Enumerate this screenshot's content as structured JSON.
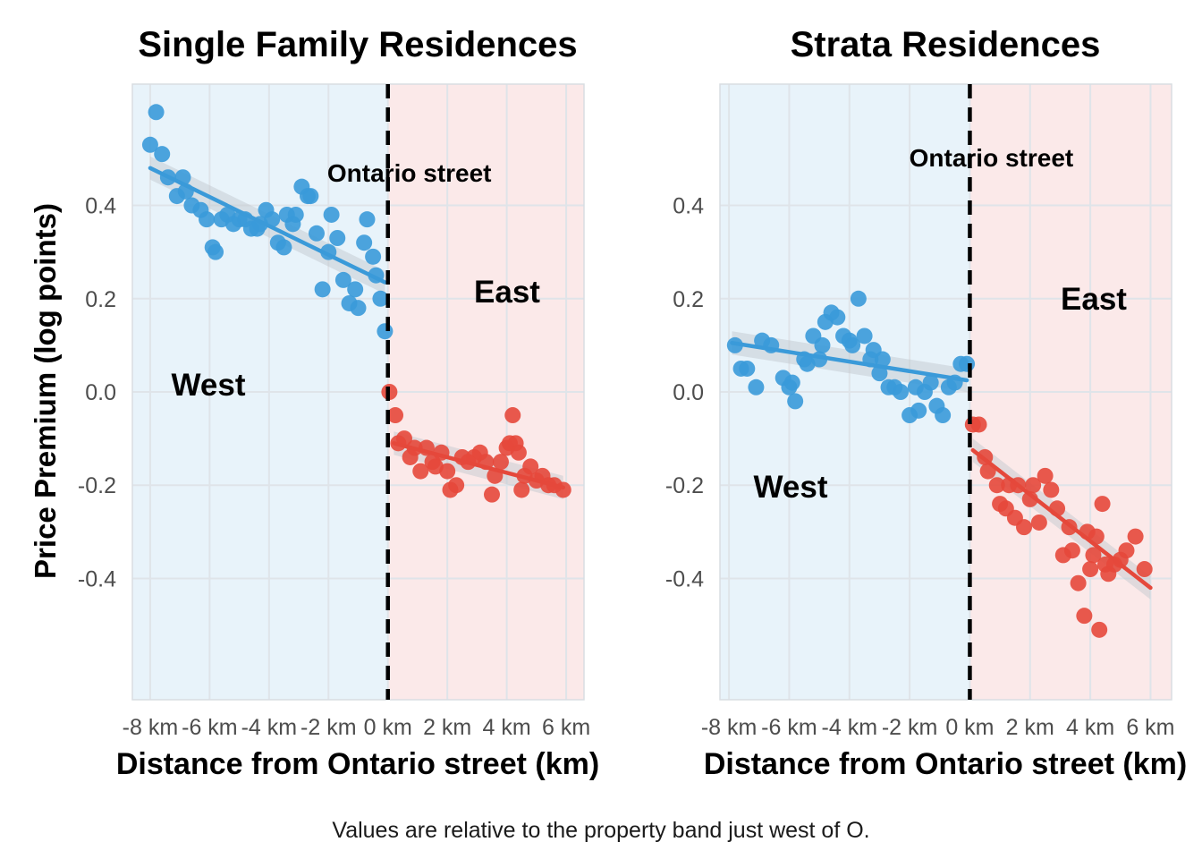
{
  "ylabel": "Price Premium (log points)",
  "caption": "Values are relative to the property band just west of O.",
  "colors": {
    "west_point": "#3a9ad9",
    "east_point": "#e5483b",
    "west_band": "#e8f3fa",
    "east_band": "#fbe9e9",
    "grid": "#dfe4e9",
    "divider": "#000000"
  },
  "chart_data": [
    {
      "type": "scatter",
      "title": "Single Family Residences",
      "xlabel": "Distance from Ontario street (km)",
      "ylabel": "Price Premium (log points)",
      "xlim": [
        -8.6,
        6.6
      ],
      "ylim": [
        -0.66,
        0.66
      ],
      "x_ticks": [
        -8,
        -6,
        -4,
        -2,
        0,
        2,
        4,
        6
      ],
      "x_tick_labels": [
        "-8 km",
        "-6 km",
        "-4 km",
        "-2 km",
        "0 km",
        "2 km",
        "4 km",
        "6 km"
      ],
      "y_ticks": [
        -0.4,
        -0.2,
        0.0,
        0.2,
        0.4
      ],
      "y_tick_labels": [
        "-0.4",
        "-0.2",
        "0.0",
        "0.2",
        "0.4"
      ],
      "grid": true,
      "divider_x": 0,
      "divider_label": "Ontario street",
      "region_labels": {
        "west": "West",
        "east": "East"
      },
      "series": [
        {
          "side": "west",
          "x": [
            -8.0,
            -7.8,
            -7.6,
            -7.4,
            -7.1,
            -6.9,
            -6.8,
            -6.6,
            -6.3,
            -6.1,
            -5.9,
            -5.8,
            -5.6,
            -5.4,
            -5.2,
            -5.0,
            -4.8,
            -4.6,
            -4.4,
            -4.3,
            -4.1,
            -3.9,
            -3.7,
            -3.5,
            -3.4,
            -3.2,
            -3.1,
            -2.9,
            -2.7,
            -2.6,
            -2.4,
            -2.2,
            -2.0,
            -1.9,
            -1.7,
            -1.5,
            -1.3,
            -1.1,
            -1.0,
            -0.8,
            -0.7,
            -0.5,
            -0.4,
            -0.25,
            -0.1
          ],
          "y": [
            0.53,
            0.6,
            0.51,
            0.46,
            0.42,
            0.46,
            0.43,
            0.4,
            0.39,
            0.37,
            0.31,
            0.3,
            0.37,
            0.38,
            0.36,
            0.37,
            0.37,
            0.35,
            0.35,
            0.36,
            0.39,
            0.37,
            0.32,
            0.31,
            0.38,
            0.36,
            0.38,
            0.44,
            0.42,
            0.42,
            0.34,
            0.22,
            0.3,
            0.38,
            0.33,
            0.24,
            0.19,
            0.22,
            0.18,
            0.32,
            0.37,
            0.29,
            0.25,
            0.2,
            0.13
          ],
          "fit": {
            "x0": -8.0,
            "y0": 0.48,
            "x1": -0.1,
            "y1": 0.235
          }
        },
        {
          "side": "east",
          "x": [
            0.05,
            0.25,
            0.35,
            0.55,
            0.75,
            0.9,
            1.1,
            1.3,
            1.5,
            1.6,
            1.8,
            2.0,
            2.1,
            2.3,
            2.5,
            2.7,
            2.9,
            3.1,
            3.3,
            3.5,
            3.6,
            3.8,
            4.0,
            4.1,
            4.2,
            4.3,
            4.4,
            4.5,
            4.6,
            4.8,
            5.0,
            5.2,
            5.4,
            5.6,
            5.9
          ],
          "y": [
            0.0,
            -0.05,
            -0.11,
            -0.1,
            -0.14,
            -0.12,
            -0.17,
            -0.12,
            -0.15,
            -0.16,
            -0.13,
            -0.17,
            -0.21,
            -0.2,
            -0.14,
            -0.15,
            -0.14,
            -0.13,
            -0.15,
            -0.22,
            -0.18,
            -0.15,
            -0.12,
            -0.11,
            -0.05,
            -0.11,
            -0.13,
            -0.21,
            -0.18,
            -0.16,
            -0.19,
            -0.18,
            -0.2,
            -0.2,
            -0.21
          ],
          "fit": {
            "x0": 0.2,
            "y0": -0.11,
            "x1": 5.9,
            "y1": -0.205
          }
        }
      ]
    },
    {
      "type": "scatter",
      "title": "Strata Residences",
      "xlabel": "Distance from Ontario street (km)",
      "ylabel": "",
      "xlim": [
        -8.3,
        6.7
      ],
      "ylim": [
        -0.66,
        0.66
      ],
      "x_ticks": [
        -8,
        -6,
        -4,
        -2,
        0,
        2,
        4,
        6
      ],
      "x_tick_labels": [
        "-8 km",
        "-6 km",
        "-4 km",
        "-2 km",
        "0 km",
        "2 km",
        "4 km",
        "6 km"
      ],
      "y_ticks": [
        -0.4,
        -0.2,
        0.0,
        0.2,
        0.4
      ],
      "y_tick_labels": [
        "-0.4",
        "-0.2",
        "0.0",
        "0.2",
        "0.4"
      ],
      "grid": true,
      "divider_x": 0,
      "divider_label": "Ontario street",
      "region_labels": {
        "west": "West",
        "east": "East"
      },
      "series": [
        {
          "side": "west",
          "x": [
            -7.8,
            -7.6,
            -7.4,
            -7.1,
            -6.9,
            -6.6,
            -6.2,
            -6.0,
            -5.9,
            -5.8,
            -5.5,
            -5.4,
            -5.2,
            -5.0,
            -4.9,
            -4.8,
            -4.6,
            -4.4,
            -4.2,
            -4.0,
            -3.9,
            -3.7,
            -3.5,
            -3.3,
            -3.2,
            -3.0,
            -2.9,
            -2.7,
            -2.5,
            -2.3,
            -2.0,
            -1.8,
            -1.7,
            -1.5,
            -1.3,
            -1.1,
            -0.9,
            -0.7,
            -0.5,
            -0.3,
            -0.1
          ],
          "y": [
            0.1,
            0.05,
            0.05,
            0.01,
            0.11,
            0.1,
            0.03,
            0.01,
            0.02,
            -0.02,
            0.07,
            0.06,
            0.12,
            0.07,
            0.1,
            0.15,
            0.17,
            0.16,
            0.12,
            0.11,
            0.1,
            0.2,
            0.12,
            0.07,
            0.09,
            0.04,
            0.07,
            0.01,
            0.01,
            0.0,
            -0.05,
            0.01,
            -0.04,
            0.0,
            0.02,
            -0.03,
            -0.05,
            0.01,
            0.02,
            0.06,
            0.06
          ],
          "fit": {
            "x0": -7.9,
            "y0": 0.105,
            "x1": -0.1,
            "y1": 0.025
          }
        },
        {
          "side": "east",
          "x": [
            0.1,
            0.3,
            0.5,
            0.6,
            0.9,
            1.0,
            1.2,
            1.3,
            1.5,
            1.6,
            1.8,
            2.0,
            2.1,
            2.3,
            2.5,
            2.7,
            2.9,
            3.1,
            3.3,
            3.4,
            3.6,
            3.8,
            3.9,
            4.0,
            4.1,
            4.2,
            4.3,
            4.4,
            4.5,
            4.6,
            4.8,
            5.0,
            5.2,
            5.5,
            5.8
          ],
          "y": [
            -0.07,
            -0.07,
            -0.14,
            -0.17,
            -0.2,
            -0.24,
            -0.25,
            -0.2,
            -0.27,
            -0.2,
            -0.29,
            -0.23,
            -0.2,
            -0.28,
            -0.18,
            -0.21,
            -0.25,
            -0.35,
            -0.29,
            -0.34,
            -0.41,
            -0.48,
            -0.3,
            -0.38,
            -0.35,
            -0.31,
            -0.51,
            -0.24,
            -0.37,
            -0.39,
            -0.37,
            -0.36,
            -0.34,
            -0.31,
            -0.38
          ],
          "fit": {
            "x0": 0.1,
            "y0": -0.125,
            "x1": 6.0,
            "y1": -0.42
          }
        }
      ]
    }
  ]
}
